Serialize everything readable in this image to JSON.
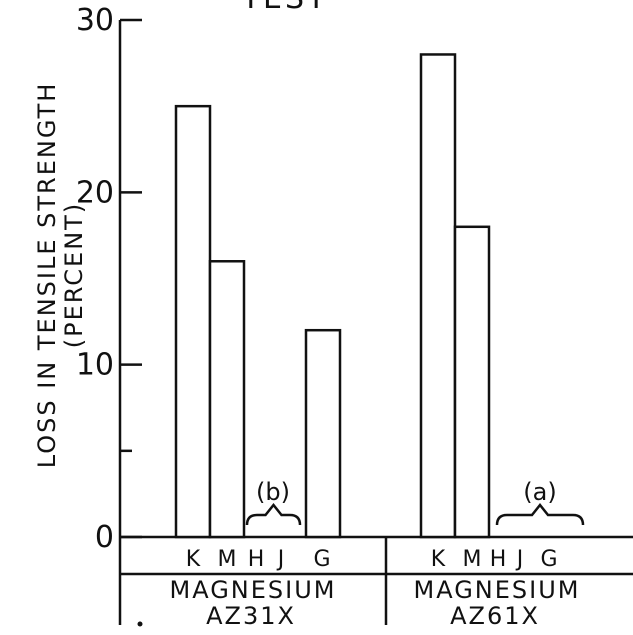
{
  "chart_data": {
    "type": "bar",
    "title": "TEST",
    "ylabel": "LOSS IN TENSILE STRENGTH",
    "ylabel_sub": "(PERCENT)",
    "ylim": [
      0,
      30
    ],
    "yticks": [
      "0",
      "10",
      "20",
      "30"
    ],
    "groups": [
      {
        "name_line1": "MAGNESIUM",
        "name_line2": "AZ31X",
        "categories": [
          "K",
          "M",
          "H",
          "J",
          "G"
        ],
        "values": [
          25,
          16,
          null,
          null,
          12
        ],
        "annotation": "(b)",
        "annotation_covers": [
          "H",
          "J"
        ]
      },
      {
        "name_line1": "MAGNESIUM",
        "name_line2": "AZ61X",
        "categories": [
          "K",
          "M",
          "H",
          "J",
          "G"
        ],
        "values": [
          28,
          18,
          null,
          null,
          null
        ],
        "annotation": "(a)",
        "annotation_covers": [
          "H",
          "J",
          "G"
        ]
      }
    ]
  }
}
